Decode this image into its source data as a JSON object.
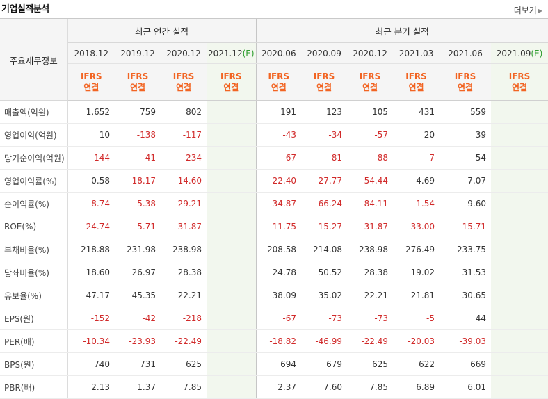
{
  "header": {
    "title": "기업실적분석",
    "more_label": "더보기"
  },
  "table": {
    "row_header_label": "주요재무정보",
    "groups": {
      "annual": "최근 연간 실적",
      "quarterly": "최근 분기 실적"
    },
    "periods": [
      {
        "date": "2018.12",
        "est": ""
      },
      {
        "date": "2019.12",
        "est": ""
      },
      {
        "date": "2020.12",
        "est": ""
      },
      {
        "date": "2021.12",
        "est": "(E)"
      },
      {
        "date": "2020.06",
        "est": ""
      },
      {
        "date": "2020.09",
        "est": ""
      },
      {
        "date": "2020.12",
        "est": ""
      },
      {
        "date": "2021.03",
        "est": ""
      },
      {
        "date": "2021.06",
        "est": ""
      },
      {
        "date": "2021.09",
        "est": "(E)"
      }
    ],
    "ifrs_top": "IFRS",
    "ifrs_bottom": "연결",
    "rows": [
      {
        "label": "매출액(억원)",
        "values": [
          "1,652",
          "759",
          "802",
          "",
          "191",
          "123",
          "105",
          "431",
          "559",
          ""
        ]
      },
      {
        "label": "영업이익(억원)",
        "values": [
          "10",
          "-138",
          "-117",
          "",
          "-43",
          "-34",
          "-57",
          "20",
          "39",
          ""
        ]
      },
      {
        "label": "당기순이익(억원)",
        "values": [
          "-144",
          "-41",
          "-234",
          "",
          "-67",
          "-81",
          "-88",
          "-7",
          "54",
          ""
        ]
      },
      {
        "label": "영업이익률(%)",
        "values": [
          "0.58",
          "-18.17",
          "-14.60",
          "",
          "-22.40",
          "-27.77",
          "-54.44",
          "4.69",
          "7.07",
          ""
        ]
      },
      {
        "label": "순이익률(%)",
        "values": [
          "-8.74",
          "-5.38",
          "-29.21",
          "",
          "-34.87",
          "-66.24",
          "-84.11",
          "-1.54",
          "9.60",
          ""
        ]
      },
      {
        "label": "ROE(%)",
        "values": [
          "-24.74",
          "-5.71",
          "-31.87",
          "",
          "-11.75",
          "-15.27",
          "-31.87",
          "-33.00",
          "-15.71",
          ""
        ]
      },
      {
        "label": "부채비율(%)",
        "values": [
          "218.88",
          "231.98",
          "238.98",
          "",
          "208.58",
          "214.08",
          "238.98",
          "276.49",
          "233.75",
          ""
        ]
      },
      {
        "label": "당좌비율(%)",
        "values": [
          "18.60",
          "26.97",
          "28.38",
          "",
          "24.78",
          "50.52",
          "28.38",
          "19.02",
          "31.53",
          ""
        ]
      },
      {
        "label": "유보율(%)",
        "values": [
          "47.17",
          "45.35",
          "22.21",
          "",
          "38.09",
          "35.02",
          "22.21",
          "21.81",
          "30.65",
          ""
        ]
      },
      {
        "label": "EPS(원)",
        "values": [
          "-152",
          "-42",
          "-218",
          "",
          "-67",
          "-73",
          "-73",
          "-5",
          "44",
          ""
        ]
      },
      {
        "label": "PER(배)",
        "values": [
          "-10.34",
          "-23.93",
          "-22.49",
          "",
          "-18.82",
          "-46.99",
          "-22.49",
          "-20.03",
          "-39.03",
          ""
        ]
      },
      {
        "label": "BPS(원)",
        "values": [
          "740",
          "731",
          "625",
          "",
          "694",
          "679",
          "625",
          "622",
          "669",
          ""
        ]
      },
      {
        "label": "PBR(배)",
        "values": [
          "2.13",
          "1.37",
          "7.85",
          "",
          "2.37",
          "7.60",
          "7.85",
          "6.89",
          "6.01",
          ""
        ]
      }
    ]
  },
  "colors": {
    "ifrs": "#f26422",
    "negative": "#d12a2a",
    "estimate_bg": "#f2f7ee",
    "estimate_mark": "#2f9e2f"
  }
}
